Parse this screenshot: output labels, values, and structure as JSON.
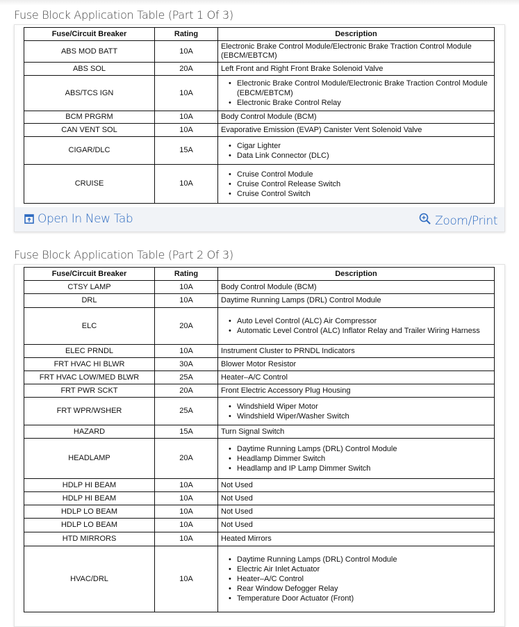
{
  "part1": {
    "title": "Fuse Block Application Table (Part 1 Of 3)",
    "headers": [
      "Fuse/Circuit Breaker",
      "Rating",
      "Description"
    ],
    "rows": [
      {
        "fuse": "ABS MOD BATT",
        "rating": "10A",
        "desc": "Electronic Brake Control Module/Electronic Brake Traction Control Module (EBCM/EBTCM)"
      },
      {
        "fuse": "ABS SOL",
        "rating": "20A",
        "desc": "Left Front and Right Front Brake Solenoid Valve"
      },
      {
        "fuse": "ABS/TCS IGN",
        "rating": "10A",
        "bullets": [
          "Electronic Brake Control Module/Electronic Brake Traction Control Module (EBCM/EBTCM)",
          "Electronic Brake Control Relay"
        ]
      },
      {
        "fuse": "BCM PRGRM",
        "rating": "10A",
        "desc": "Body Control Module (BCM)"
      },
      {
        "fuse": "CAN VENT SOL",
        "rating": "10A",
        "desc": "Evaporative Emission (EVAP) Canister Vent Solenoid Valve"
      },
      {
        "fuse": "CIGAR/DLC",
        "rating": "15A",
        "bullets": [
          "Cigar Lighter",
          "Data Link Connector (DLC)"
        ]
      },
      {
        "fuse": "CRUISE",
        "rating": "10A",
        "bullets": [
          "Cruise Control Module",
          "Cruise Control Release Switch",
          "Cruise Control Switch"
        ]
      }
    ],
    "open_new_tab": "Open In New Tab",
    "zoom_print": "Zoom/Print"
  },
  "part2": {
    "title": "Fuse Block Application Table (Part 2 Of 3)",
    "headers": [
      "Fuse/Circuit Breaker",
      "Rating",
      "Description"
    ],
    "rows": [
      {
        "fuse": "CTSY LAMP",
        "rating": "10A",
        "desc": "Body Control Module (BCM)"
      },
      {
        "fuse": "DRL",
        "rating": "10A",
        "desc": "Daytime Running Lamps (DRL) Control Module"
      },
      {
        "fuse": "ELC",
        "rating": "20A",
        "bullets": [
          "Auto Level Control (ALC) Air Compressor",
          "Automatic Level Control (ALC) Inflator Relay and Trailer Wiring Harness"
        ]
      },
      {
        "fuse": "ELEC PRNDL",
        "rating": "10A",
        "desc": "Instrument Cluster to PRNDL Indicators"
      },
      {
        "fuse": "FRT HVAC HI BLWR",
        "rating": "30A",
        "desc": "Blower Motor Resistor"
      },
      {
        "fuse": "FRT HVAC LOW/MED BLWR",
        "rating": "25A",
        "desc": "Heater–A/C Control"
      },
      {
        "fuse": "FRT PWR SCKT",
        "rating": "20A",
        "desc": "Front Electric Accessory Plug Housing"
      },
      {
        "fuse": "FRT WPR/WSHER",
        "rating": "25A",
        "bullets": [
          "Windshield Wiper Motor",
          "Windshield Wiper/Washer Switch"
        ]
      },
      {
        "fuse": "HAZARD",
        "rating": "15A",
        "desc": "Turn Signal Switch"
      },
      {
        "fuse": "HEADLAMP",
        "rating": "20A",
        "bullets": [
          "Daytime Running Lamps (DRL) Control Module",
          "Headlamp Dimmer Switch",
          "Headlamp and IP Lamp Dimmer Switch"
        ]
      },
      {
        "fuse": "HDLP HI BEAM",
        "rating": "10A",
        "desc": "Not Used"
      },
      {
        "fuse": "HDLP HI BEAM",
        "rating": "10A",
        "desc": "Not Used"
      },
      {
        "fuse": "HDLP LO BEAM",
        "rating": "10A",
        "desc": "Not Used"
      },
      {
        "fuse": "HDLP LO BEAM",
        "rating": "10A",
        "desc": "Not Used"
      },
      {
        "fuse": "HTD MIRRORS",
        "rating": "10A",
        "desc": "Heated Mirrors"
      },
      {
        "fuse": "HVAC/DRL",
        "rating": "10A",
        "bullets": [
          "Daytime Running Lamps (DRL) Control Module",
          "Electric Air Inlet Actuator",
          "Heater–A/C Control",
          "Rear Window Defogger Relay",
          "Temperature Door Actuator (Front)"
        ]
      }
    ]
  },
  "icons": {
    "open_new_tab": "open-new-tab-icon",
    "zoom": "magnifier-plus-icon"
  },
  "colors": {
    "link": "#2f6cc1",
    "bar": "#f1f3f7"
  }
}
